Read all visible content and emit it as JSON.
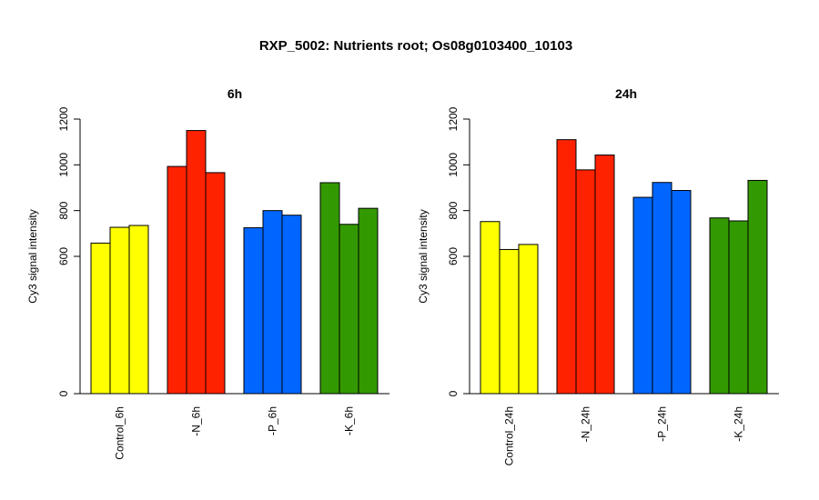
{
  "title": "RXP_5002: Nutrients root; Os08g0103400_10103",
  "chart_data": [
    {
      "type": "bar",
      "title": "6h",
      "ylabel": "Cy3 signal intensity",
      "y_ticks": [
        "0",
        "600",
        "800",
        "1000",
        "1200"
      ],
      "categories": [
        "Control_6h",
        "-N_6h",
        "-P_6h",
        "-K_6h"
      ],
      "colors": [
        "#ffff00",
        "#ff2200",
        "#0066ff",
        "#339900"
      ],
      "values": [
        [
          658,
          727,
          735
        ],
        [
          993,
          1150,
          966
        ],
        [
          725,
          800,
          780
        ],
        [
          922,
          740,
          810
        ]
      ]
    },
    {
      "type": "bar",
      "title": "24h",
      "ylabel": "Cy3 signal intensity",
      "y_ticks": [
        "0",
        "600",
        "800",
        "1000",
        "1200"
      ],
      "categories": [
        "Control_24h",
        "-N_24h",
        "-P_24h",
        "-K_24h"
      ],
      "colors": [
        "#ffff00",
        "#ff2200",
        "#0066ff",
        "#339900"
      ],
      "values": [
        [
          752,
          630,
          652
        ],
        [
          1110,
          978,
          1043
        ],
        [
          858,
          923,
          888
        ],
        [
          768,
          755,
          932
        ]
      ]
    }
  ]
}
